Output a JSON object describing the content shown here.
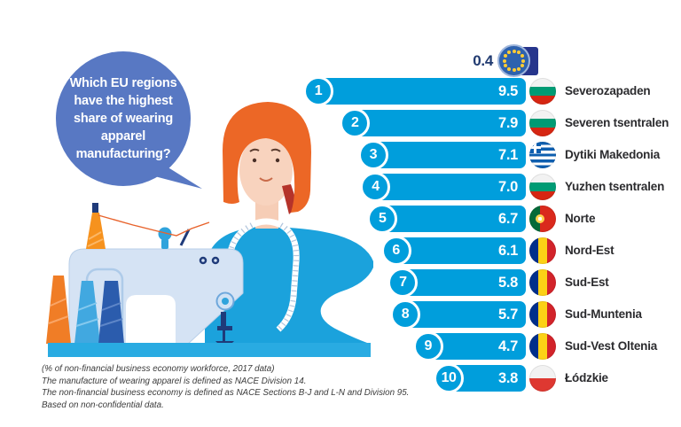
{
  "speech_bubble": {
    "text": "Which EU regions have the highest share of wearing apparel manufacturing?"
  },
  "eu_average": {
    "value": "0.4",
    "flag": "eu"
  },
  "ranking": [
    {
      "rank": "1",
      "value": "9.5",
      "label": "Severozapaden",
      "flag": "bulgaria"
    },
    {
      "rank": "2",
      "value": "7.9",
      "label": "Severen tsentralen",
      "flag": "bulgaria"
    },
    {
      "rank": "3",
      "value": "7.1",
      "label": "Dytiki Makedonia",
      "flag": "greece"
    },
    {
      "rank": "4",
      "value": "7.0",
      "label": "Yuzhen tsentralen",
      "flag": "bulgaria"
    },
    {
      "rank": "5",
      "value": "6.7",
      "label": "Norte",
      "flag": "portugal"
    },
    {
      "rank": "6",
      "value": "6.1",
      "label": "Nord-Est",
      "flag": "romania"
    },
    {
      "rank": "7",
      "value": "5.8",
      "label": "Sud-Est",
      "flag": "romania"
    },
    {
      "rank": "8",
      "value": "5.7",
      "label": "Sud-Muntenia",
      "flag": "romania"
    },
    {
      "rank": "9",
      "value": "4.7",
      "label": "Sud-Vest Oltenia",
      "flag": "romania"
    },
    {
      "rank": "10",
      "value": "3.8",
      "label": "Łódzkie",
      "flag": "poland"
    }
  ],
  "footnotes": [
    "(% of non-financial business economy workforce, 2017 data)",
    "The manufacture of wearing apparel is defined as NACE Division 14.",
    "The non-financial business economy is defined as NACE Sections B-J and L-N and Division 95.",
    "Based on non-confidential data."
  ],
  "colors": {
    "bar": "#009EDC",
    "bubble": "#5878C3",
    "eu_value_text": "#203A70",
    "label_text": "#2B2B2E",
    "platform": "#29ABE2",
    "hair": "#EC6726",
    "machine_body": "#D5E3F4"
  },
  "chart_data": {
    "type": "bar",
    "orientation": "horizontal",
    "title": "Which EU regions have the highest share of wearing apparel manufacturing?",
    "categories": [
      "Severozapaden",
      "Severen tsentralen",
      "Dytiki Makedonia",
      "Yuzhen tsentralen",
      "Norte",
      "Nord-Est",
      "Sud-Est",
      "Sud-Muntenia",
      "Sud-Vest Oltenia",
      "Łódzkie"
    ],
    "values": [
      9.5,
      7.9,
      7.1,
      7.0,
      6.7,
      6.1,
      5.8,
      5.7,
      4.7,
      3.8
    ],
    "flags": [
      "Bulgaria",
      "Bulgaria",
      "Greece",
      "Bulgaria",
      "Portugal",
      "Romania",
      "Romania",
      "Romania",
      "Romania",
      "Poland"
    ],
    "eu_average": 0.4,
    "unit": "% of non-financial business economy workforce, 2017 data",
    "xlim": [
      0,
      10
    ],
    "legend": "none",
    "grid": false
  }
}
